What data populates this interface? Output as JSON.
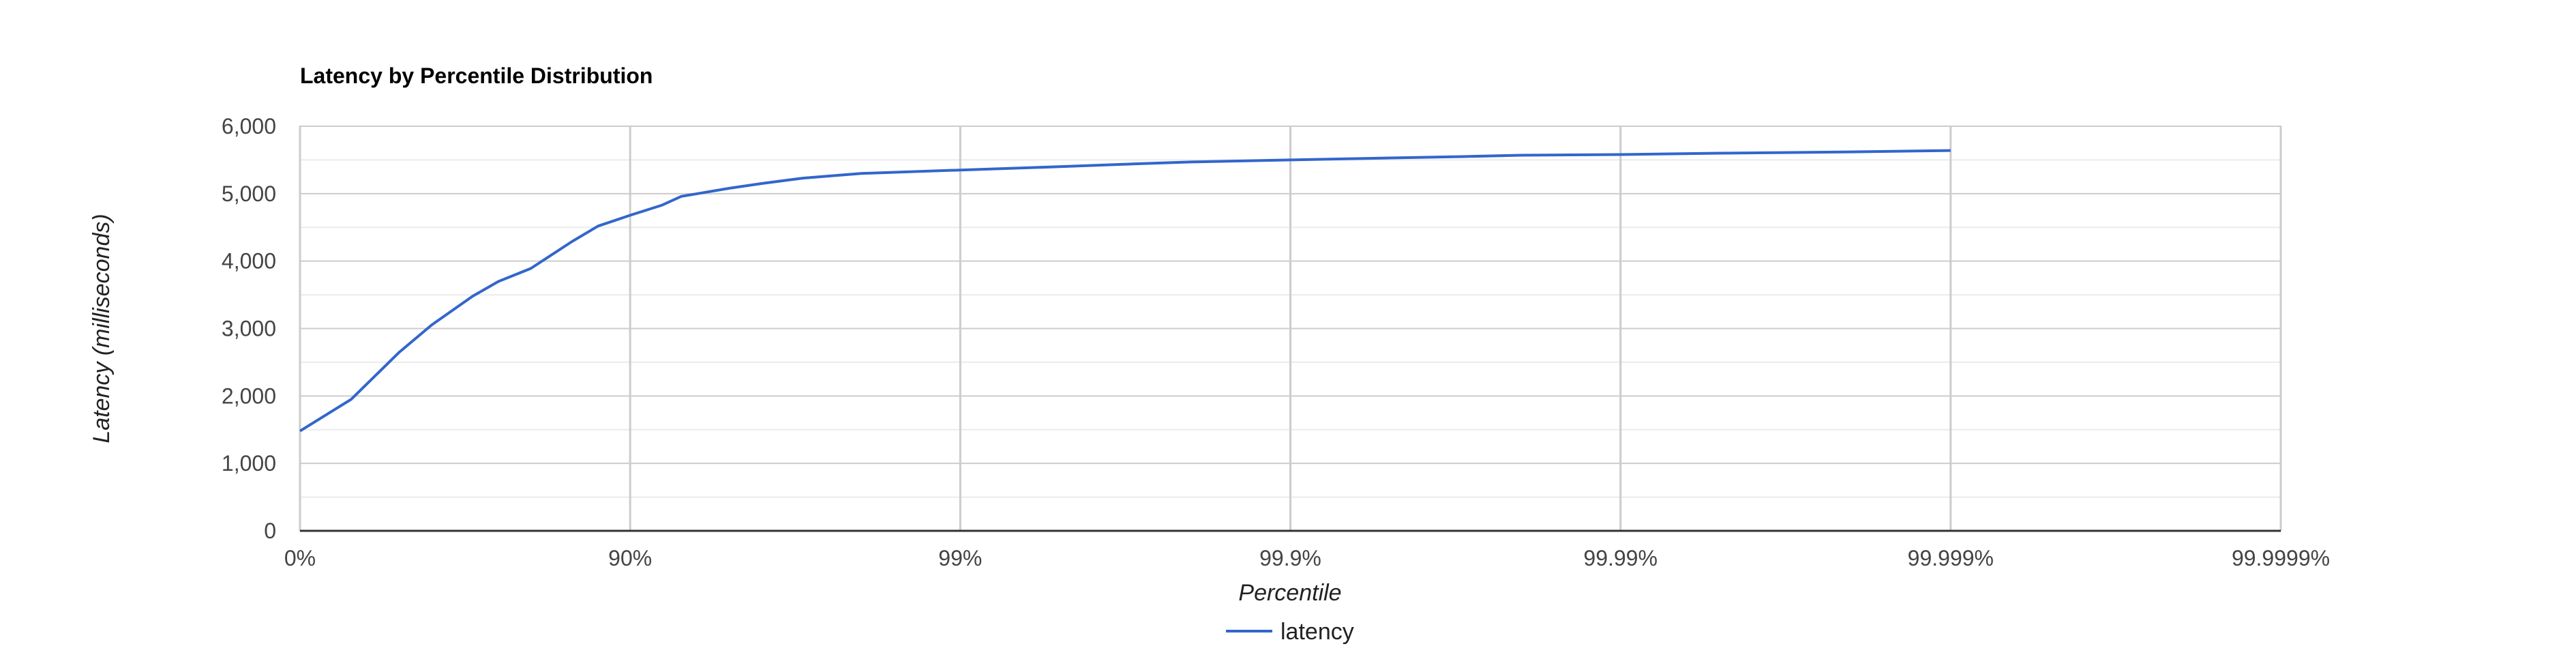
{
  "chart_data": {
    "type": "line",
    "title": "Latency by Percentile Distribution",
    "xlabel": "Percentile",
    "ylabel": "Latency (milliseconds)",
    "x_scale": "log-percentile",
    "x_ticks": [
      "0%",
      "90%",
      "99%",
      "99.9%",
      "99.99%",
      "99.999%",
      "99.9999%"
    ],
    "y_ticks": [
      "0",
      "1,000",
      "2,000",
      "3,000",
      "4,000",
      "5,000",
      "6,000"
    ],
    "ylim": [
      0,
      6000
    ],
    "grid": true,
    "legend_position": "bottom",
    "colors": {
      "series": "#3366cc",
      "grid_major": "#cccccc",
      "grid_minor": "#ebebeb",
      "baseline": "#333333",
      "frame": "#cccccc"
    },
    "series": [
      {
        "name": "latency",
        "x": [
          0,
          30,
          50,
          60,
          70,
          75,
          80,
          85,
          87.5,
          90,
          92,
          93,
          95,
          96,
          97,
          98,
          99,
          99.5,
          99.7,
          99.8,
          99.9,
          99.95,
          99.97,
          99.98,
          99.99,
          99.995,
          99.997,
          99.998,
          99.999
        ],
        "y": [
          1480,
          1950,
          2650,
          3050,
          3480,
          3700,
          3890,
          4290,
          4520,
          4680,
          4830,
          4960,
          5080,
          5150,
          5230,
          5300,
          5350,
          5400,
          5440,
          5470,
          5500,
          5530,
          5550,
          5570,
          5580,
          5600,
          5610,
          5620,
          5640
        ]
      }
    ]
  }
}
